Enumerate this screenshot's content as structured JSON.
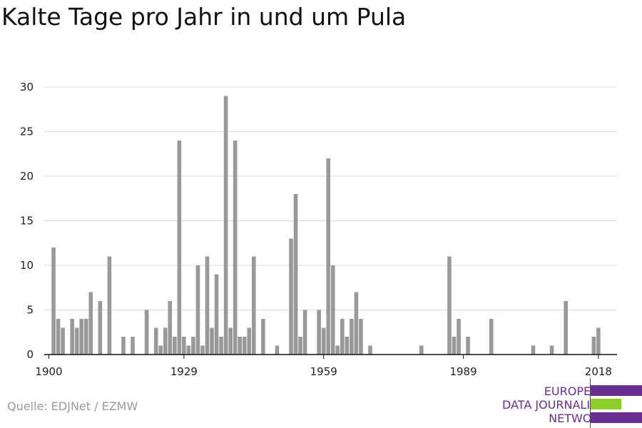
{
  "source": "Quelle: EDJNet / EZMW",
  "logo": {
    "line1": "EUROPEAN",
    "line2": "DATA JOURNALISM",
    "line3": "NETWORK",
    "colors": [
      "#6a2d91",
      "#8ccf2d",
      "#6a2d91"
    ],
    "bar_values": [
      1,
      0.6,
      1
    ]
  },
  "chart_data": {
    "type": "bar",
    "title": "Kalte Tage pro Jahr in und um Pula",
    "xlabel": "",
    "ylabel": "",
    "ylim": [
      0,
      30
    ],
    "yticks": [
      0,
      5,
      10,
      15,
      20,
      25,
      30
    ],
    "xticks": [
      1900,
      1929,
      1959,
      1989,
      2018
    ],
    "xlim": [
      1899,
      2022
    ],
    "grid": true,
    "bar_color": "#999999",
    "x": [
      1901,
      1902,
      1903,
      1905,
      1906,
      1907,
      1908,
      1909,
      1911,
      1913,
      1916,
      1918,
      1921,
      1923,
      1924,
      1925,
      1926,
      1927,
      1928,
      1929,
      1930,
      1931,
      1932,
      1933,
      1934,
      1935,
      1936,
      1937,
      1938,
      1939,
      1940,
      1941,
      1942,
      1943,
      1944,
      1946,
      1949,
      1952,
      1953,
      1954,
      1955,
      1958,
      1959,
      1960,
      1961,
      1962,
      1963,
      1964,
      1965,
      1966,
      1967,
      1969,
      1980,
      1986,
      1987,
      1988,
      1990,
      1995,
      2004,
      2008,
      2011,
      2017,
      2018
    ],
    "values": [
      12,
      4,
      3,
      4,
      3,
      4,
      4,
      7,
      6,
      11,
      2,
      2,
      5,
      3,
      1,
      3,
      6,
      2,
      24,
      2,
      1,
      2,
      10,
      1,
      11,
      3,
      9,
      2,
      29,
      3,
      24,
      2,
      2,
      3,
      11,
      4,
      1,
      13,
      18,
      2,
      5,
      5,
      3,
      22,
      10,
      1,
      4,
      2,
      4,
      7,
      4,
      1,
      1,
      11,
      2,
      4,
      2,
      4,
      1,
      1,
      6,
      2,
      3
    ]
  }
}
